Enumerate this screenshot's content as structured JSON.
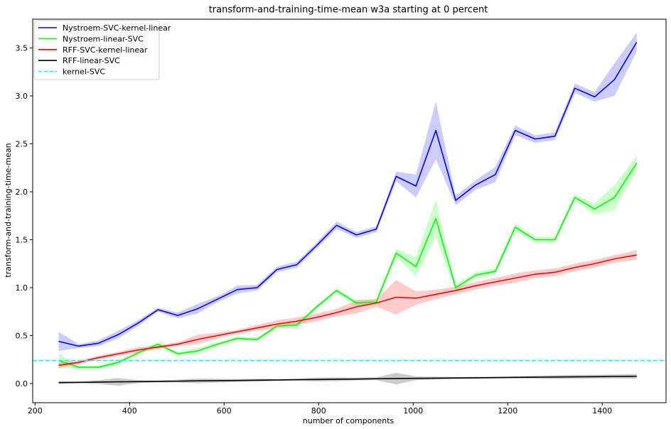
{
  "chart_data": {
    "type": "line",
    "title": "transform-and-training-time-mean w3a starting at 0 percent",
    "xlabel": "number of components",
    "ylabel": "transform-and-training-time-mean",
    "xlim": [
      195,
      1535
    ],
    "ylim": [
      -0.2,
      3.8
    ],
    "xticks": [
      200,
      400,
      600,
      800,
      1000,
      1200,
      1400
    ],
    "yticks": [
      0.0,
      0.5,
      1.0,
      1.5,
      2.0,
      2.5,
      3.0,
      3.5
    ],
    "xtick_labels": [
      "200",
      "400",
      "600",
      "800",
      "1000",
      "1200",
      "1400"
    ],
    "ytick_labels": [
      "0.0",
      "0.5",
      "1.0",
      "1.5",
      "2.0",
      "2.5",
      "3.0",
      "3.5"
    ],
    "grid": false,
    "legend_position": "top-left",
    "x": [
      250,
      292,
      334,
      376,
      418,
      460,
      502,
      544,
      586,
      628,
      670,
      712,
      754,
      796,
      838,
      880,
      922,
      964,
      1006,
      1048,
      1090,
      1132,
      1174,
      1216,
      1258,
      1300,
      1342,
      1384,
      1426,
      1473
    ],
    "series": [
      {
        "name": "Nystroem-SVC-kernel-linear",
        "color": "#0000ff",
        "dashed": false,
        "values": [
          0.44,
          0.39,
          0.42,
          0.51,
          0.63,
          0.77,
          0.71,
          0.78,
          0.88,
          0.98,
          1.0,
          1.19,
          1.24,
          1.44,
          1.65,
          1.55,
          1.61,
          2.16,
          2.06,
          2.64,
          1.91,
          2.07,
          2.18,
          2.64,
          2.55,
          2.58,
          3.08,
          2.99,
          3.17,
          3.56
        ],
        "band": [
          0.1,
          0.02,
          0.03,
          0.04,
          0.03,
          0.02,
          0.03,
          0.05,
          0.03,
          0.04,
          0.03,
          0.03,
          0.03,
          0.03,
          0.04,
          0.03,
          0.03,
          0.05,
          0.12,
          0.3,
          0.05,
          0.05,
          0.08,
          0.05,
          0.04,
          0.04,
          0.05,
          0.05,
          0.17,
          0.1
        ]
      },
      {
        "name": "Nystroem-linear-SVC",
        "color": "#00ff00",
        "dashed": false,
        "values": [
          0.24,
          0.17,
          0.17,
          0.22,
          0.32,
          0.41,
          0.31,
          0.34,
          0.41,
          0.47,
          0.46,
          0.6,
          0.61,
          0.8,
          0.97,
          0.84,
          0.85,
          1.36,
          1.22,
          1.72,
          1.0,
          1.13,
          1.17,
          1.63,
          1.5,
          1.5,
          1.94,
          1.82,
          1.94,
          2.3
        ],
        "band": [
          0.07,
          0.02,
          0.02,
          0.02,
          0.02,
          0.02,
          0.02,
          0.03,
          0.02,
          0.02,
          0.02,
          0.02,
          0.03,
          0.02,
          0.02,
          0.03,
          0.03,
          0.04,
          0.1,
          0.2,
          0.03,
          0.03,
          0.03,
          0.04,
          0.03,
          0.03,
          0.03,
          0.06,
          0.13,
          0.08
        ]
      },
      {
        "name": "RFF-SVC-kernel-linear",
        "color": "#ff0000",
        "dashed": false,
        "values": [
          0.19,
          0.22,
          0.27,
          0.31,
          0.35,
          0.38,
          0.41,
          0.46,
          0.5,
          0.54,
          0.58,
          0.62,
          0.65,
          0.69,
          0.74,
          0.8,
          0.84,
          0.9,
          0.89,
          0.93,
          0.97,
          1.02,
          1.06,
          1.1,
          1.14,
          1.16,
          1.21,
          1.25,
          1.3,
          1.34
        ],
        "band": [
          0.03,
          0.02,
          0.02,
          0.02,
          0.03,
          0.02,
          0.02,
          0.05,
          0.03,
          0.02,
          0.03,
          0.04,
          0.04,
          0.04,
          0.04,
          0.07,
          0.04,
          0.18,
          0.07,
          0.05,
          0.04,
          0.04,
          0.04,
          0.05,
          0.04,
          0.04,
          0.04,
          0.04,
          0.04,
          0.05
        ]
      },
      {
        "name": "RFF-linear-SVC",
        "color": "#000000",
        "dashed": false,
        "values": [
          0.01,
          0.012,
          0.015,
          0.018,
          0.02,
          0.022,
          0.025,
          0.028,
          0.03,
          0.032,
          0.035,
          0.037,
          0.04,
          0.042,
          0.045,
          0.047,
          0.05,
          0.052,
          0.054,
          0.056,
          0.058,
          0.06,
          0.062,
          0.064,
          0.066,
          0.068,
          0.07,
          0.072,
          0.074,
          0.076
        ],
        "band": [
          0.015,
          0.01,
          0.02,
          0.04,
          0.015,
          0.01,
          0.015,
          0.025,
          0.02,
          0.015,
          0.015,
          0.01,
          0.01,
          0.02,
          0.02,
          0.015,
          0.015,
          0.06,
          0.02,
          0.015,
          0.01,
          0.01,
          0.01,
          0.01,
          0.015,
          0.02,
          0.02,
          0.02,
          0.02,
          0.025
        ]
      },
      {
        "name": "kernel-SVC",
        "color": "#00ffff",
        "dashed": true,
        "constant": 0.24
      }
    ]
  }
}
